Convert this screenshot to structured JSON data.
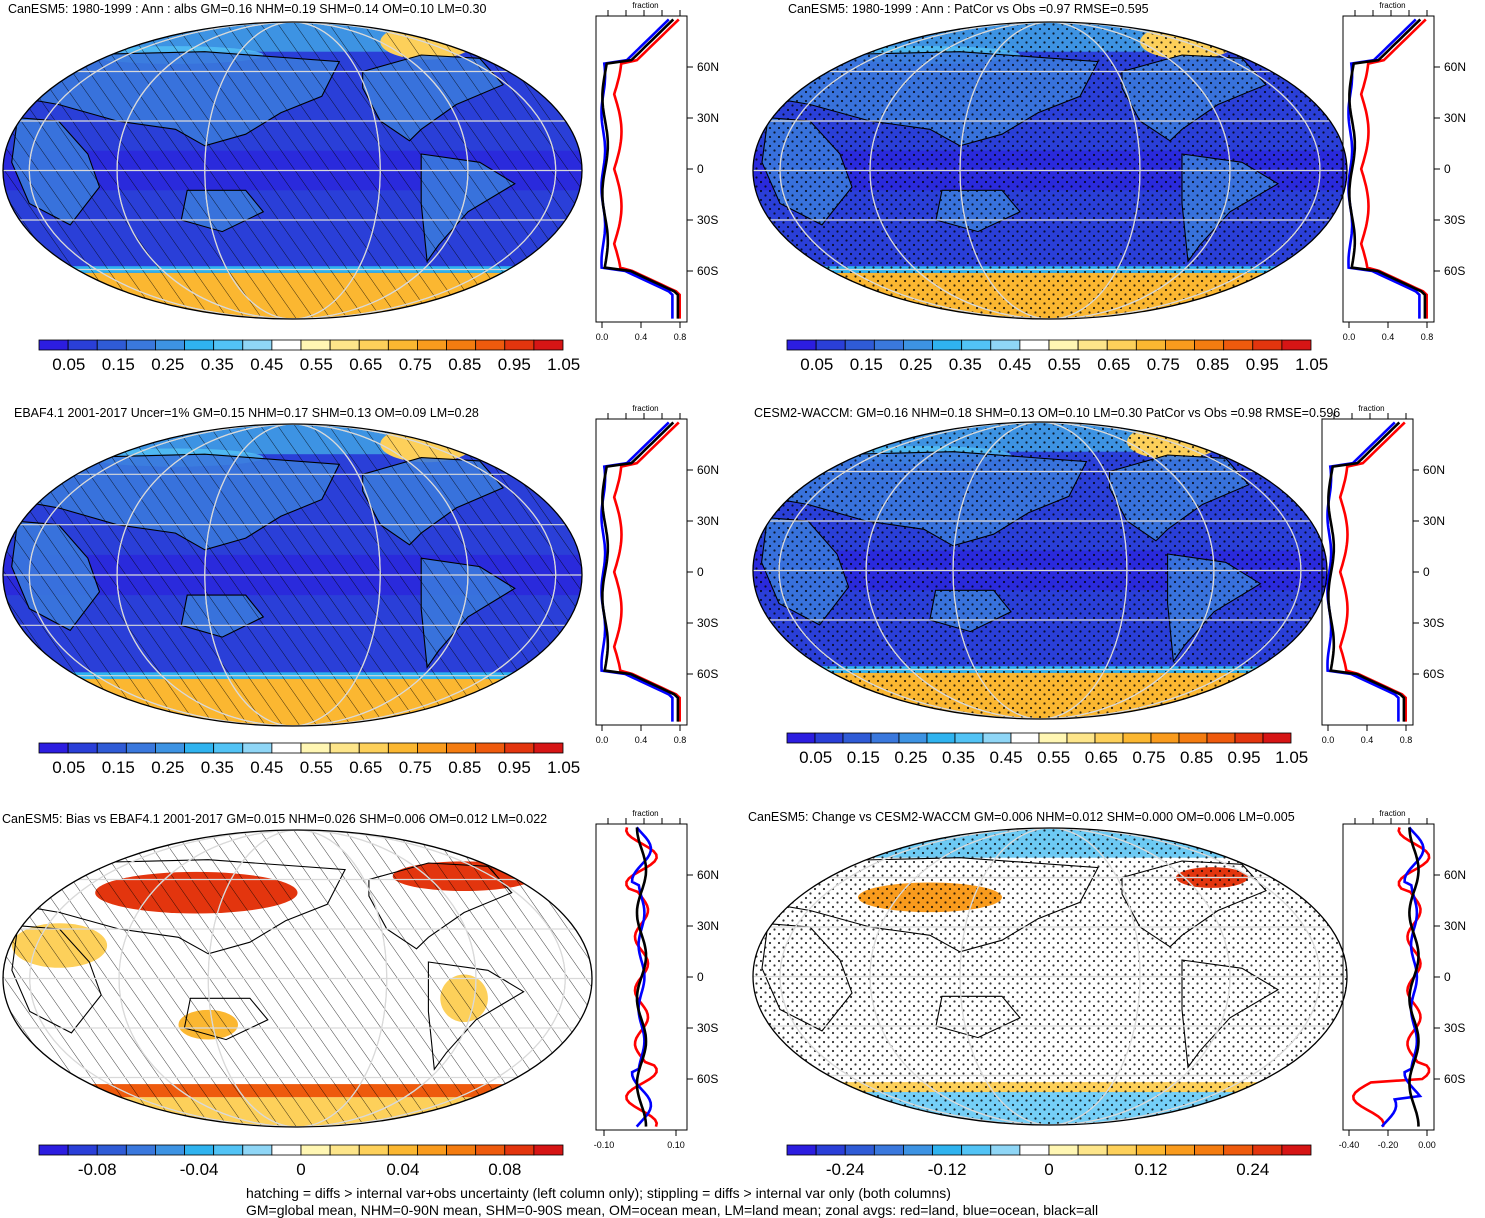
{
  "panels": [
    {
      "id": "p1",
      "title": "CanESM5: 1980-1999 : Ann : albs GM=0.16 NHM=0.19 SHM=0.14 OM=0.10 LM=0.30",
      "kind": "abs",
      "pattern": "hatch",
      "zonal_ticks": [
        "0.0",
        "0.4",
        "0.8"
      ],
      "zonal_title": "fraction"
    },
    {
      "id": "p2",
      "title": "CanESM5: 1980-1999 : Ann : PatCor vs Obs =0.97 RMSE=0.595",
      "kind": "abs",
      "pattern": "stipple",
      "zonal_ticks": [
        "0.0",
        "0.4",
        "0.8"
      ],
      "zonal_title": "fraction"
    },
    {
      "id": "p3",
      "title": "EBAF4.1 2001-2017 Uncer=1% GM=0.15 NHM=0.17 SHM=0.13 OM=0.09 LM=0.28",
      "kind": "abs",
      "pattern": "hatch",
      "zonal_ticks": [
        "0.0",
        "0.4",
        "0.8"
      ],
      "zonal_title": "fraction"
    },
    {
      "id": "p4",
      "title": "CESM2-WACCM: GM=0.16 NHM=0.18 SHM=0.13 OM=0.10 LM=0.30 PatCor vs Obs =0.98 RMSE=0.596",
      "kind": "abs",
      "pattern": "stipple",
      "zonal_ticks": [
        "0.0",
        "0.4",
        "0.8"
      ],
      "zonal_title": "fraction"
    },
    {
      "id": "p5",
      "title": "CanESM5: Bias vs EBAF4.1 2001-2017 GM=0.015 NHM=0.026 SHM=0.006 OM=0.012 LM=0.022",
      "kind": "bias",
      "pattern": "hatch",
      "zonal_ticks": [
        "-0.10",
        "0.10"
      ],
      "zonal_title": "fraction"
    },
    {
      "id": "p6",
      "title": "CanESM5: Change vs CESM2-WACCM GM=0.006 NHM=0.012 SHM=0.000 OM=0.006 LM=0.005",
      "kind": "change",
      "pattern": "stipple",
      "zonal_ticks": [
        "-0.40",
        "-0.20",
        "0.00"
      ],
      "zonal_title": "fraction"
    }
  ],
  "lat_labels": [
    "60N",
    "30N",
    "0",
    "30S",
    "60S"
  ],
  "colorbars": {
    "abs": {
      "labels": [
        "0.05",
        "0.15",
        "0.25",
        "0.35",
        "0.45",
        "0.55",
        "0.65",
        "0.75",
        "0.85",
        "0.95",
        "1.05"
      ]
    },
    "bias": {
      "labels": [
        "-0.08",
        "-0.04",
        "0",
        "0.04",
        "0.08"
      ]
    },
    "change": {
      "labels": [
        "-0.24",
        "-0.12",
        "0",
        "0.12",
        "0.24"
      ]
    }
  },
  "palette": [
    "#2c1de0",
    "#2a3fd8",
    "#2f5bd6",
    "#3a78dd",
    "#3d93e3",
    "#2fb3ef",
    "#52c3f5",
    "#8fd6f6",
    "#ffffff",
    "#fff6b3",
    "#fde58a",
    "#fdd05a",
    "#fbb731",
    "#f99b1d",
    "#f47c10",
    "#ee5a0d",
    "#e3350e",
    "#d61515"
  ],
  "line_colors": {
    "land": "#ff0000",
    "ocean": "#0000ff",
    "all": "#000000"
  },
  "footnote": {
    "line1": "hatching = diffs > internal var+obs uncertainty (left column only); stippling = diffs > internal var only (both columns)",
    "line2": "GM=global mean, NHM=0-90N mean, SHM=0-90S mean, OM=ocean mean, LM=land mean; zonal avgs: red=land, blue=ocean, black=all"
  }
}
